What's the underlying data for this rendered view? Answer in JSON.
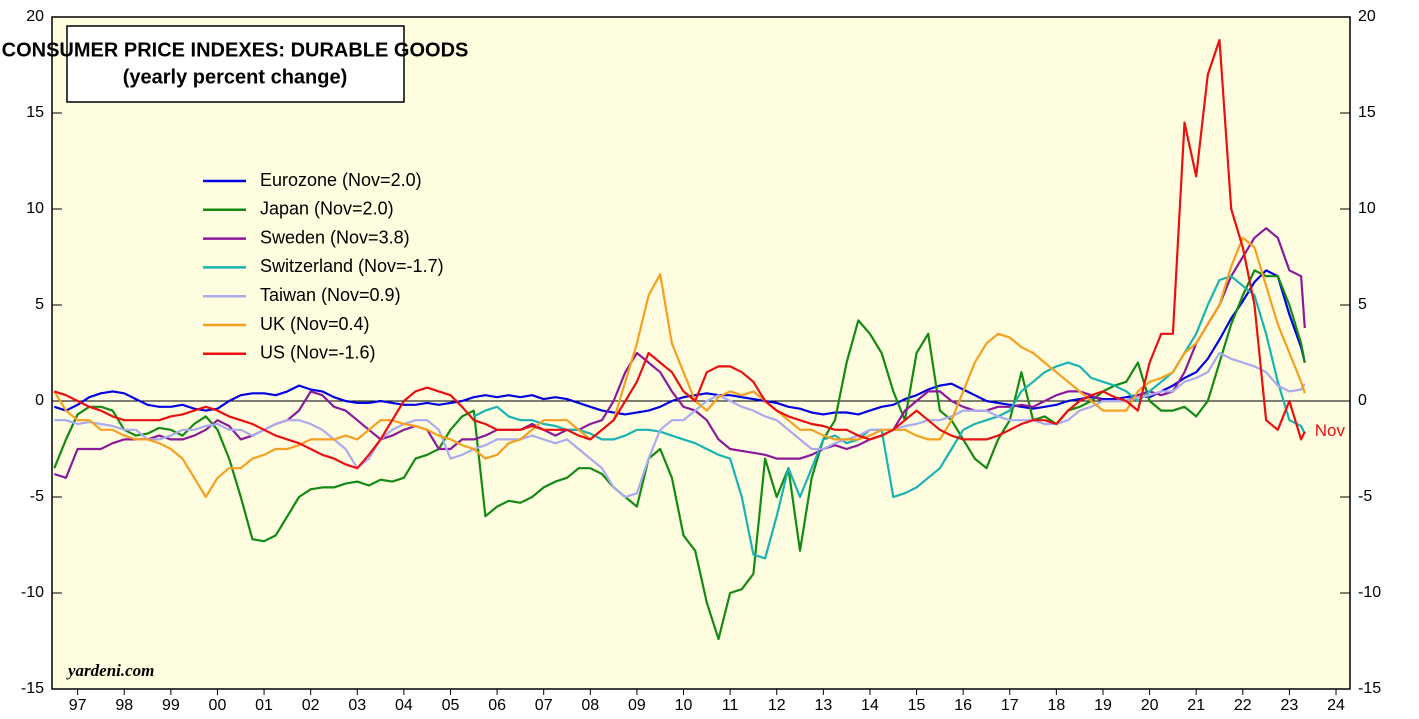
{
  "chart_data": {
    "type": "line",
    "title": "CONSUMER PRICE INDEXES: DURABLE GOODS",
    "subtitle": "(yearly percent change)",
    "annotation": "Nov",
    "source": "yardeni.com",
    "x": [
      1997,
      1997.25,
      1997.5,
      1997.75,
      1998,
      1998.25,
      1998.5,
      1998.75,
      1999,
      1999.25,
      1999.5,
      1999.75,
      2000,
      2000.25,
      2000.5,
      2000.75,
      2001,
      2001.25,
      2001.5,
      2001.75,
      2002,
      2002.25,
      2002.5,
      2002.75,
      2003,
      2003.25,
      2003.5,
      2003.75,
      2004,
      2004.25,
      2004.5,
      2004.75,
      2005,
      2005.25,
      2005.5,
      2005.75,
      2006,
      2006.25,
      2006.5,
      2006.75,
      2007,
      2007.25,
      2007.5,
      2007.75,
      2008,
      2008.25,
      2008.5,
      2008.75,
      2009,
      2009.25,
      2009.5,
      2009.75,
      2010,
      2010.25,
      2010.5,
      2010.75,
      2011,
      2011.25,
      2011.5,
      2011.75,
      2012,
      2012.25,
      2012.5,
      2012.75,
      2013,
      2013.25,
      2013.5,
      2013.75,
      2014,
      2014.25,
      2014.5,
      2014.75,
      2015,
      2015.25,
      2015.5,
      2015.75,
      2016,
      2016.25,
      2016.5,
      2016.75,
      2017,
      2017.25,
      2017.5,
      2017.75,
      2018,
      2018.25,
      2018.5,
      2018.75,
      2019,
      2019.25,
      2019.5,
      2019.75,
      2020,
      2020.25,
      2020.5,
      2020.75,
      2021,
      2021.25,
      2021.5,
      2021.75,
      2022,
      2022.25,
      2022.5,
      2022.75,
      2023,
      2023.25,
      2023.5,
      2023.75,
      2023.83
    ],
    "series": [
      {
        "name": "Eurozone (Nov=2.0)",
        "color": "#0000e0",
        "values": [
          -0.3,
          -0.5,
          -0.2,
          0.2,
          0.4,
          0.5,
          0.4,
          0.1,
          -0.2,
          -0.3,
          -0.3,
          -0.2,
          -0.4,
          -0.5,
          -0.4,
          0,
          0.3,
          0.4,
          0.4,
          0.3,
          0.5,
          0.8,
          0.6,
          0.5,
          0.2,
          0,
          -0.1,
          -0.1,
          0,
          -0.1,
          -0.2,
          -0.2,
          -0.1,
          -0.2,
          -0.1,
          0,
          0.2,
          0.3,
          0.2,
          0.3,
          0.2,
          0.3,
          0.1,
          0.2,
          0.1,
          -0.1,
          -0.3,
          -0.5,
          -0.6,
          -0.7,
          -0.6,
          -0.5,
          -0.3,
          0,
          0.2,
          0.3,
          0.4,
          0.3,
          0.3,
          0.2,
          0.1,
          0,
          -0.1,
          -0.3,
          -0.4,
          -0.6,
          -0.7,
          -0.6,
          -0.6,
          -0.7,
          -0.5,
          -0.3,
          -0.2,
          0.1,
          0.3,
          0.6,
          0.8,
          0.9,
          0.6,
          0.3,
          0,
          -0.1,
          -0.2,
          -0.3,
          -0.4,
          -0.3,
          -0.2,
          0,
          0.1,
          0.2,
          0.1,
          0.1,
          0.2,
          0.3,
          0.2,
          0.5,
          0.8,
          1.2,
          1.5,
          2.2,
          3.2,
          4.3,
          5.2,
          6.2,
          6.8,
          6.5,
          4.5,
          2.8,
          2.0
        ]
      },
      {
        "name": "Japan (Nov=2.0)",
        "color": "#138a13",
        "values": [
          -3.5,
          -2,
          -0.7,
          -0.3,
          -0.3,
          -0.5,
          -1.5,
          -1.8,
          -1.7,
          -1.4,
          -1.5,
          -1.8,
          -1.2,
          -0.8,
          -1.5,
          -3,
          -5,
          -7.2,
          -7.3,
          -7,
          -6,
          -5,
          -4.6,
          -4.5,
          -4.5,
          -4.3,
          -4.2,
          -4.4,
          -4.1,
          -4.2,
          -4,
          -3,
          -2.8,
          -2.5,
          -1.5,
          -0.8,
          -0.5,
          -6,
          -5.5,
          -5.2,
          -5.3,
          -5,
          -4.5,
          -4.2,
          -4,
          -3.5,
          -3.5,
          -3.8,
          -4.5,
          -5,
          -5.5,
          -3,
          -2.5,
          -4,
          -7,
          -7.8,
          -10.5,
          -12.4,
          -10,
          -9.8,
          -9,
          -3,
          -5,
          -3.5,
          -7.8,
          -4,
          -2,
          -1,
          2,
          4.2,
          3.5,
          2.5,
          0.5,
          -1,
          2.5,
          3.5,
          -0.5,
          -1,
          -2,
          -3,
          -3.5,
          -2,
          -1,
          1.5,
          -1,
          -0.8,
          -1.2,
          -0.5,
          -0.3,
          0,
          0.5,
          0.8,
          1,
          2,
          0,
          -0.5,
          -0.5,
          -0.3,
          -0.8,
          0,
          2,
          4,
          5.5,
          6.8,
          6.5,
          6.5,
          5,
          3,
          2.0
        ]
      },
      {
        "name": "Sweden (Nov=3.8)",
        "color": "#8b1a9b",
        "values": [
          -3.8,
          -4,
          -2.5,
          -2.5,
          -2.5,
          -2.2,
          -2,
          -2,
          -2,
          -1.8,
          -2,
          -2,
          -1.8,
          -1.5,
          -1,
          -1.3,
          -2,
          -1.8,
          -1.5,
          -1.2,
          -1,
          -0.5,
          0.5,
          0.3,
          -0.3,
          -0.5,
          -1,
          -1.5,
          -2,
          -1.8,
          -1.5,
          -1.3,
          -1.5,
          -2.5,
          -2.5,
          -2,
          -2,
          -1.8,
          -1.5,
          -1.5,
          -1.5,
          -1.2,
          -1.5,
          -1.8,
          -1.5,
          -1.5,
          -1.2,
          -1,
          0,
          1.5,
          2.5,
          2,
          1.5,
          0.5,
          -0.3,
          -0.5,
          -1,
          -2,
          -2.5,
          -2.6,
          -2.7,
          -2.8,
          -3,
          -3,
          -3,
          -2.8,
          -2.5,
          -2.3,
          -2.5,
          -2.3,
          -2,
          -1.8,
          -1.5,
          -0.5,
          0,
          0.5,
          0.5,
          0,
          -0.3,
          -0.5,
          -0.5,
          -0.3,
          -0.3,
          -0.2,
          -0.3,
          0,
          0.3,
          0.5,
          0.5,
          0.3,
          0,
          0,
          0,
          0.3,
          0.5,
          0.3,
          0.5,
          1.5,
          3,
          4,
          5,
          6.5,
          7.5,
          8.5,
          9,
          8.5,
          6.8,
          6.5,
          3.8
        ]
      },
      {
        "name": "Switzerland (Nov=-1.7)",
        "color": "#1ab3b3",
        "values": [
          null,
          null,
          null,
          null,
          null,
          null,
          null,
          null,
          null,
          null,
          null,
          null,
          null,
          null,
          null,
          null,
          null,
          null,
          null,
          null,
          null,
          null,
          null,
          null,
          null,
          null,
          null,
          null,
          null,
          null,
          null,
          null,
          null,
          null,
          null,
          null,
          -0.8,
          -0.5,
          -0.3,
          -0.8,
          -1,
          -1,
          -1.2,
          -1.3,
          -1.5,
          -1.5,
          -1.7,
          -2,
          -2,
          -1.8,
          -1.5,
          -1.5,
          -1.6,
          -1.8,
          -2,
          -2.2,
          -2.5,
          -2.8,
          -3,
          -5,
          -8,
          -8.2,
          -6,
          -3.5,
          -5,
          -3.5,
          -2,
          -1.8,
          -2.2,
          -2,
          -1.5,
          -1.5,
          -5,
          -4.8,
          -4.5,
          -4,
          -3.5,
          -2.5,
          -1.5,
          -1.2,
          -1,
          -0.8,
          -0.5,
          0.5,
          1,
          1.5,
          1.8,
          2,
          1.8,
          1.2,
          1,
          0.8,
          0.5,
          0,
          0.5,
          1,
          1.5,
          2.5,
          3.5,
          5,
          6.3,
          6.5,
          6,
          5.5,
          3.5,
          1,
          -1,
          -1.3,
          -1.7
        ]
      },
      {
        "name": "Taiwan (Nov=0.9)",
        "color": "#aaaaee",
        "values": [
          -1,
          -1,
          -1.2,
          -1.1,
          -1.2,
          -1.3,
          -1.5,
          -1.5,
          -2,
          -2,
          -1.8,
          -1.5,
          -1.5,
          -1.3,
          -1.2,
          -1.5,
          -1.5,
          -1.8,
          -1.5,
          -1.2,
          -1,
          -1,
          -1.2,
          -1.5,
          -2,
          -2.5,
          -3.5,
          -3,
          -2,
          -1.5,
          -1.2,
          -1,
          -1,
          -1.5,
          -3,
          -2.8,
          -2.5,
          -2.3,
          -2,
          -2,
          -2,
          -1.8,
          -2,
          -2.2,
          -2,
          -2.5,
          -3,
          -3.5,
          -4.5,
          -5,
          -4.8,
          -3,
          -1.5,
          -1,
          -1,
          -0.5,
          0,
          0.3,
          0,
          -0.3,
          -0.5,
          -0.8,
          -1,
          -1.5,
          -2,
          -2.5,
          -2.5,
          -2.2,
          -2,
          -1.8,
          -1.5,
          -1.5,
          -1.5,
          -1.3,
          -1.2,
          -1,
          -1,
          -0.8,
          -0.5,
          -0.5,
          -0.5,
          -0.8,
          -1,
          -1,
          -1,
          -1.2,
          -1.2,
          -1,
          -0.5,
          -0.3,
          0,
          0,
          0,
          0.2,
          0.3,
          0.5,
          0.5,
          1,
          1.2,
          1.5,
          2.5,
          2.2,
          2,
          1.8,
          1.5,
          0.8,
          0.5,
          0.6,
          0.9
        ]
      },
      {
        "name": "UK (Nov=0.4)",
        "color": "#f5a020",
        "values": [
          0.5,
          -0.5,
          -1,
          -1,
          -1.5,
          -1.5,
          -1.8,
          -2,
          -2,
          -2.2,
          -2.5,
          -3,
          -4,
          -5,
          -4,
          -3.5,
          -3.5,
          -3,
          -2.8,
          -2.5,
          -2.5,
          -2.3,
          -2,
          -2,
          -2,
          -1.8,
          -2,
          -1.5,
          -1,
          -1,
          -1.2,
          -1.3,
          -1.5,
          -1.8,
          -2,
          -2.3,
          -2.5,
          -3,
          -2.8,
          -2.2,
          -2,
          -1.5,
          -1,
          -1,
          -1,
          -1.5,
          -2,
          -1.5,
          -1,
          1,
          3,
          5.5,
          6.6,
          3,
          1.5,
          0,
          -0.5,
          0.2,
          0.5,
          0.3,
          0.5,
          0,
          -0.5,
          -1,
          -1.5,
          -1.5,
          -1.8,
          -2,
          -2,
          -2,
          -1.8,
          -1.5,
          -1.5,
          -1.5,
          -1.8,
          -2,
          -2,
          -1,
          0.5,
          2,
          3,
          3.5,
          3.3,
          2.8,
          2.5,
          2,
          1.5,
          1,
          0.5,
          0,
          -0.5,
          -0.5,
          -0.5,
          0.5,
          1,
          1.2,
          1.5,
          2.5,
          3,
          4,
          5,
          7,
          8.5,
          8,
          6,
          4,
          2.5,
          1,
          0.4
        ]
      },
      {
        "name": "US (Nov=-1.6)",
        "color": "#e81010",
        "values": [
          0.5,
          0.3,
          0,
          -0.3,
          -0.5,
          -0.8,
          -1,
          -1,
          -1,
          -1,
          -0.8,
          -0.7,
          -0.5,
          -0.3,
          -0.5,
          -0.8,
          -1,
          -1.2,
          -1.5,
          -1.8,
          -2,
          -2.2,
          -2.5,
          -2.8,
          -3,
          -3.3,
          -3.5,
          -2.8,
          -2,
          -1,
          0,
          0.5,
          0.7,
          0.5,
          0.3,
          -0.3,
          -1,
          -1.2,
          -1.5,
          -1.5,
          -1.5,
          -1.3,
          -1.5,
          -1.5,
          -1.5,
          -1.8,
          -2,
          -1.5,
          -1,
          0,
          1,
          2.5,
          2,
          1.5,
          0.5,
          0,
          1.5,
          1.8,
          1.8,
          1.5,
          1,
          0,
          -0.5,
          -0.8,
          -1,
          -1.2,
          -1.3,
          -1.5,
          -1.5,
          -1.8,
          -2,
          -1.8,
          -1.5,
          -1,
          -0.5,
          -1,
          -1.5,
          -1.8,
          -2,
          -2,
          -2,
          -1.8,
          -1.5,
          -1.2,
          -1,
          -1,
          -1.2,
          -0.5,
          0,
          0.3,
          0.5,
          0.2,
          0,
          -0.5,
          2,
          3.5,
          3.5,
          14.5,
          11.7,
          17,
          18.8,
          10,
          8,
          5,
          -1,
          -1.5,
          0,
          -2,
          -1.6
        ]
      }
    ],
    "xlim": [
      1996.95,
      2024.8
    ],
    "xticks": [
      {
        "value": 1997.5,
        "label": "97"
      },
      {
        "value": 1998.5,
        "label": "98"
      },
      {
        "value": 1999.5,
        "label": "99"
      },
      {
        "value": 2000.5,
        "label": "00"
      },
      {
        "value": 2001.5,
        "label": "01"
      },
      {
        "value": 2002.5,
        "label": "02"
      },
      {
        "value": 2003.5,
        "label": "03"
      },
      {
        "value": 2004.5,
        "label": "04"
      },
      {
        "value": 2005.5,
        "label": "05"
      },
      {
        "value": 2006.5,
        "label": "06"
      },
      {
        "value": 2007.5,
        "label": "07"
      },
      {
        "value": 2008.5,
        "label": "08"
      },
      {
        "value": 2009.5,
        "label": "09"
      },
      {
        "value": 2010.5,
        "label": "10"
      },
      {
        "value": 2011.5,
        "label": "11"
      },
      {
        "value": 2012.5,
        "label": "12"
      },
      {
        "value": 2013.5,
        "label": "13"
      },
      {
        "value": 2014.5,
        "label": "14"
      },
      {
        "value": 2015.5,
        "label": "15"
      },
      {
        "value": 2016.5,
        "label": "16"
      },
      {
        "value": 2017.5,
        "label": "17"
      },
      {
        "value": 2018.5,
        "label": "18"
      },
      {
        "value": 2019.5,
        "label": "19"
      },
      {
        "value": 2020.5,
        "label": "20"
      },
      {
        "value": 2021.5,
        "label": "21"
      },
      {
        "value": 2022.5,
        "label": "22"
      },
      {
        "value": 2023.5,
        "label": "23"
      },
      {
        "value": 2024.5,
        "label": "24"
      }
    ],
    "ylim": [
      -15,
      20
    ],
    "yticks": [
      -15,
      -10,
      -5,
      0,
      5,
      10,
      15,
      20
    ],
    "grid": false,
    "legend": "upper left"
  }
}
